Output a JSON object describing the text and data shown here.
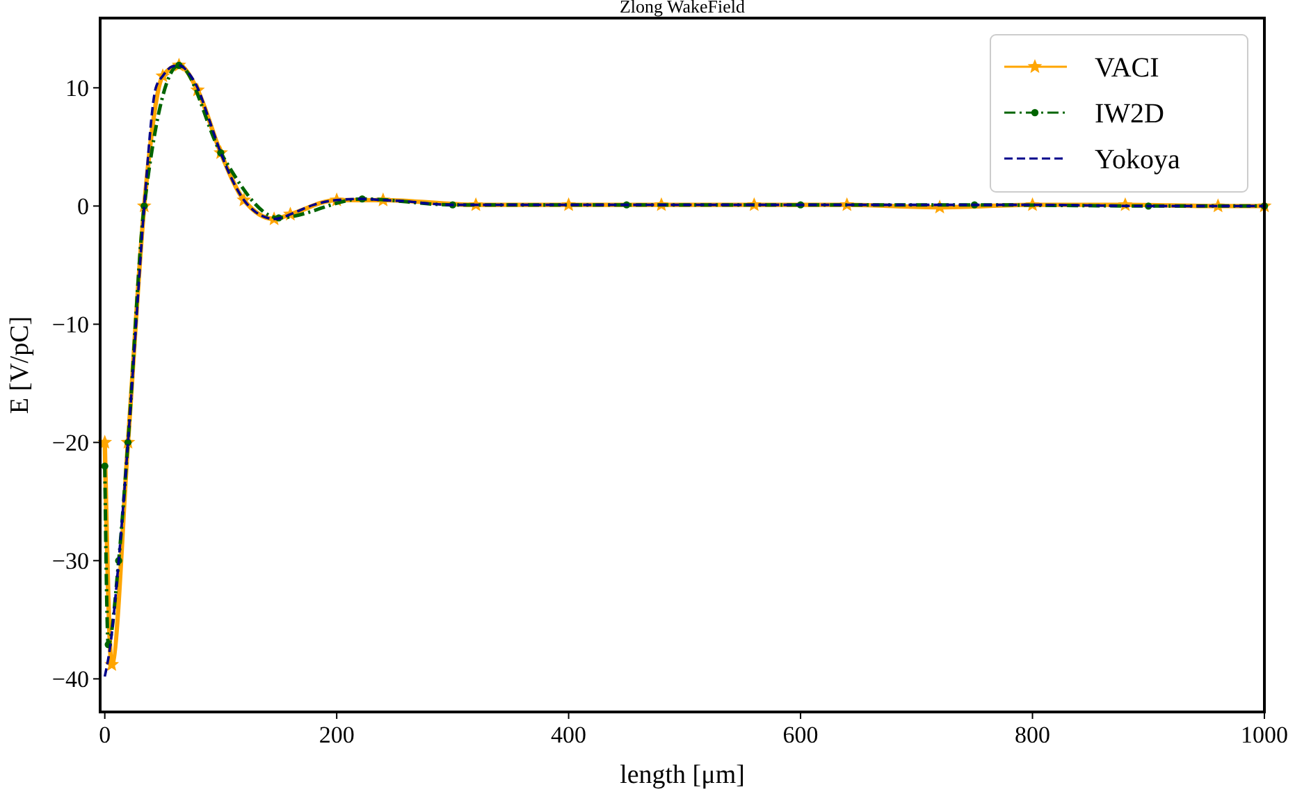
{
  "chart_data": {
    "type": "line",
    "title": "Zlong WakeField",
    "xlabel": "length [μm]",
    "ylabel": "E [V/pC]",
    "xlim": [
      -4,
      1000
    ],
    "ylim": [
      -42.8,
      15.9
    ],
    "xticks": [
      0,
      200,
      400,
      600,
      800,
      1000
    ],
    "yticks": [
      {
        "value": -40,
        "label": "−40"
      },
      {
        "value": -30,
        "label": "−30"
      },
      {
        "value": -20,
        "label": "−20"
      },
      {
        "value": -10,
        "label": "−10"
      },
      0,
      10
    ],
    "grid": false,
    "legend": "top right",
    "series": [
      {
        "name": "VACI",
        "color": "#ffa500",
        "marker": "star",
        "line_style": "solid",
        "x": [
          0,
          6,
          20,
          34,
          50,
          64,
          80,
          100,
          120,
          146,
          160,
          200,
          240,
          320,
          400,
          480,
          560,
          640,
          720,
          800,
          880,
          960,
          1000
        ],
        "values": [
          -20,
          -38.8,
          -20,
          0,
          11,
          11.9,
          9.8,
          4.5,
          0.5,
          -1.1,
          -0.7,
          0.5,
          0.5,
          0.1,
          0.1,
          0.1,
          0.1,
          0.1,
          -0.1,
          0.1,
          0.1,
          0,
          0
        ]
      },
      {
        "name": "IW2D",
        "color": "#006400",
        "marker": "circle",
        "line_style": "dashdot",
        "x": [
          0,
          3,
          12,
          20,
          34,
          64,
          100,
          150,
          222,
          300,
          450,
          600,
          750,
          900,
          1000
        ],
        "values": [
          -22,
          -37.1,
          -30,
          -20,
          0,
          11.9,
          4.5,
          -1.0,
          0.6,
          0.1,
          0.1,
          0.1,
          0.1,
          0,
          0
        ]
      },
      {
        "name": "Yokoya",
        "color": "#00008b",
        "marker": "none",
        "line_style": "dashed",
        "x": [
          0,
          5,
          12,
          20,
          27,
          34,
          44,
          50,
          58,
          64,
          72,
          80,
          90,
          100,
          110,
          120,
          130,
          140,
          146,
          155,
          165,
          180,
          200,
          222,
          240,
          260,
          280,
          300,
          350,
          400,
          500,
          600,
          700,
          800,
          900,
          1000
        ],
        "values": [
          -39.8,
          -37,
          -30,
          -20,
          -10,
          0,
          10,
          11,
          11.8,
          11.9,
          11.3,
          10,
          7.3,
          4.5,
          2.2,
          0.5,
          -0.5,
          -1.0,
          -1.1,
          -0.9,
          -0.5,
          0.1,
          0.5,
          0.6,
          0.5,
          0.4,
          0.2,
          0.1,
          0.1,
          0.1,
          0.1,
          0.1,
          0.1,
          0.1,
          0,
          0
        ]
      }
    ]
  }
}
